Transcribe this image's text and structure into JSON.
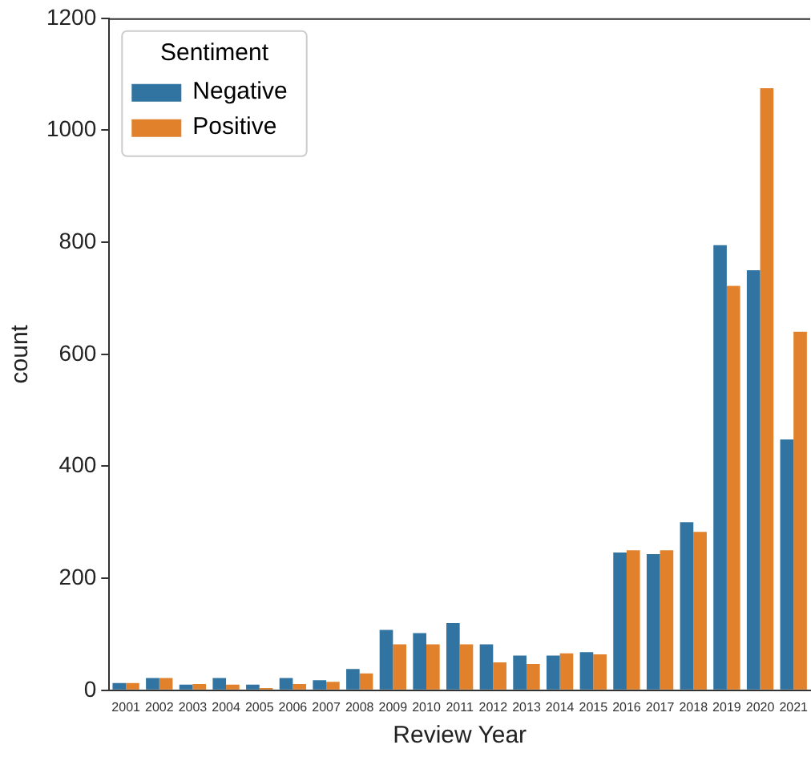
{
  "chart_data": {
    "type": "bar",
    "xlabel": "Review Year",
    "ylabel": "count",
    "legend_title": "Sentiment",
    "legend": "top left",
    "grid": false,
    "categories": [
      "2001",
      "2002",
      "2003",
      "2004",
      "2005",
      "2006",
      "2007",
      "2008",
      "2009",
      "2010",
      "2011",
      "2012",
      "2013",
      "2014",
      "2015",
      "2016",
      "2017",
      "2018",
      "2019",
      "2020",
      "2021"
    ],
    "series": [
      {
        "name": "Negative",
        "color": "#3274a1",
        "values": [
          13,
          22,
          10,
          22,
          10,
          22,
          18,
          38,
          108,
          102,
          120,
          82,
          62,
          62,
          68,
          246,
          243,
          300,
          795,
          750,
          448
        ]
      },
      {
        "name": "Positive",
        "color": "#e1812c",
        "values": [
          13,
          22,
          11,
          10,
          4,
          11,
          15,
          30,
          82,
          82,
          82,
          50,
          47,
          66,
          64,
          250,
          250,
          283,
          722,
          1075,
          640
        ]
      }
    ],
    "ylim": [
      0,
      1200
    ],
    "yticks": [
      0,
      200,
      400,
      600,
      800,
      1000,
      1200
    ]
  }
}
